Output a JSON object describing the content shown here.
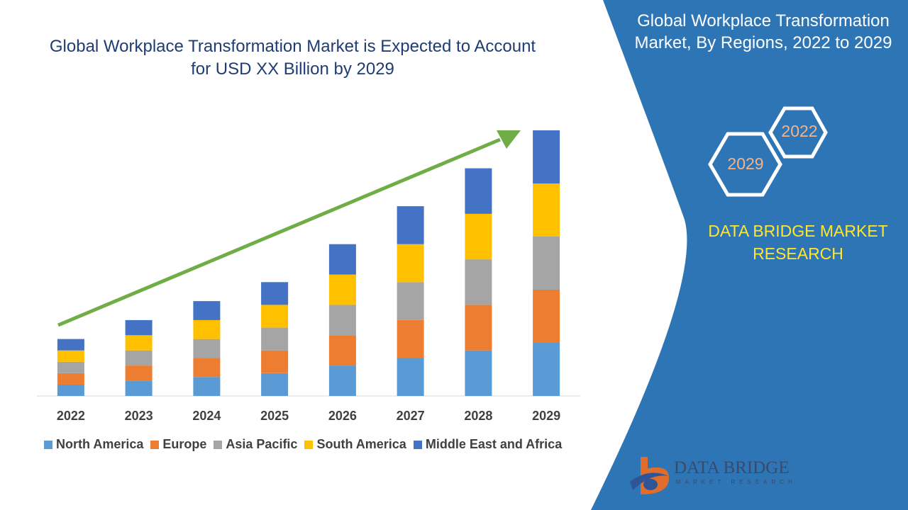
{
  "chart_data": {
    "type": "bar",
    "stacked": true,
    "title": "Global Workplace Transformation Market is Expected to Account for USD XX Billion by 2029",
    "categories": [
      "2022",
      "2023",
      "2024",
      "2025",
      "2026",
      "2027",
      "2028",
      "2029"
    ],
    "series": [
      {
        "name": "North America",
        "color": "#5b9bd5",
        "values": [
          15,
          20,
          25,
          30,
          40,
          50,
          60,
          70
        ]
      },
      {
        "name": "Europe",
        "color": "#ed7d31",
        "values": [
          15,
          20,
          25,
          30,
          40,
          50,
          60,
          70
        ]
      },
      {
        "name": "Asia Pacific",
        "color": "#a5a5a5",
        "values": [
          15,
          20,
          25,
          30,
          40,
          50,
          60,
          70
        ]
      },
      {
        "name": "South America",
        "color": "#ffc000",
        "values": [
          15,
          20,
          25,
          30,
          40,
          50,
          60,
          70
        ]
      },
      {
        "name": "Middle East and Africa",
        "color": "#4472c4",
        "values": [
          15,
          20,
          25,
          30,
          40,
          50,
          60,
          70
        ]
      }
    ],
    "ylim": [
      0,
      350
    ],
    "grid": false,
    "legend": "bottom",
    "trend_arrow_color": "#70ad47"
  },
  "panel": {
    "title": "Global Workplace Transformation Market, By Regions, 2022 to 2029",
    "hex_labels": {
      "top": "2022",
      "bottom": "2029"
    },
    "brand": "DATA BRIDGE MARKET RESEARCH",
    "background_color": "#2e75b6"
  },
  "logo": {
    "name": "DATA BRIDGE",
    "tagline": "MARKET RESEARCH"
  }
}
